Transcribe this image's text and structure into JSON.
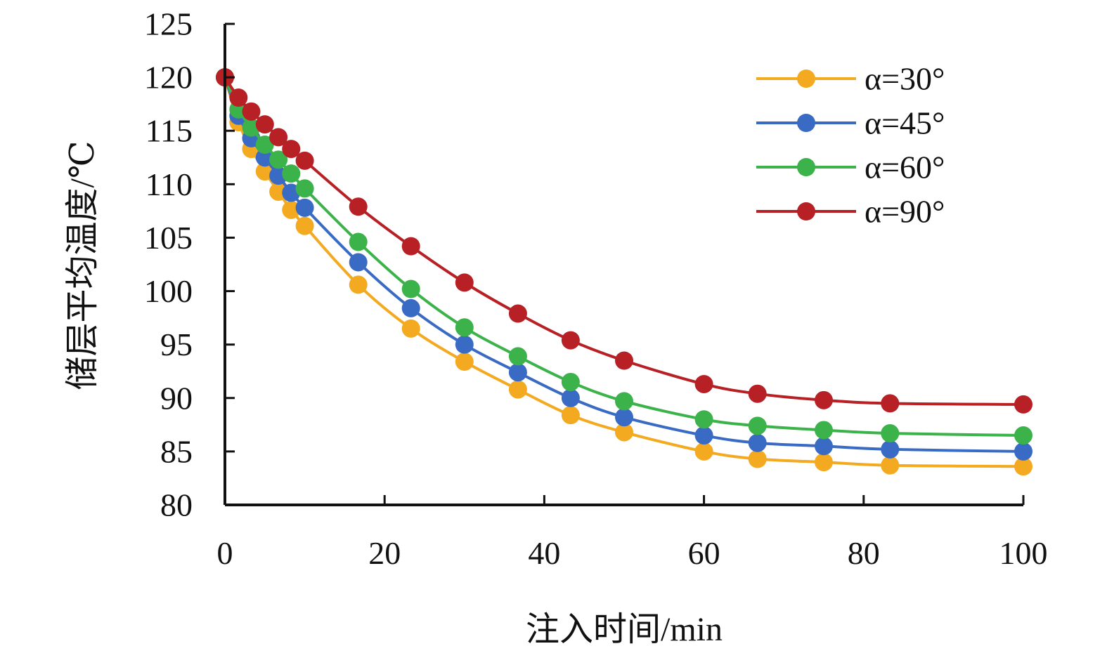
{
  "chart_data": {
    "type": "line",
    "xlabel": "注入时间/min",
    "ylabel": "储层平均温度/℃",
    "xlim": [
      0,
      100
    ],
    "ylim": [
      80,
      125
    ],
    "x_ticks": [
      "0",
      "20",
      "40",
      "60",
      "80",
      "100"
    ],
    "y_ticks": [
      "80",
      "85",
      "90",
      "95",
      "100",
      "105",
      "110",
      "115",
      "120",
      "125"
    ],
    "grid": false,
    "legend_position": "top-right",
    "x": [
      0,
      1.7,
      3.3,
      5,
      6.7,
      8.3,
      10,
      16.7,
      23.3,
      30,
      36.7,
      43.3,
      50,
      60,
      66.7,
      75,
      83.3,
      100
    ],
    "series": [
      {
        "name": "α=30°",
        "color": "#F3A920",
        "values": [
          120,
          115.8,
          113.3,
          111.2,
          109.3,
          107.6,
          106.1,
          100.6,
          96.5,
          93.4,
          90.8,
          88.4,
          86.8,
          85.0,
          84.3,
          84.0,
          83.7,
          83.6
        ]
      },
      {
        "name": "α=45°",
        "color": "#3A6BC4",
        "values": [
          120,
          116.4,
          114.3,
          112.5,
          110.8,
          109.2,
          107.8,
          102.7,
          98.4,
          95.0,
          92.4,
          90.0,
          88.2,
          86.5,
          85.8,
          85.5,
          85.2,
          85.0
        ]
      },
      {
        "name": "α=60°",
        "color": "#3CB34A",
        "values": [
          120,
          117.0,
          115.3,
          113.7,
          112.3,
          111.0,
          109.6,
          104.6,
          100.2,
          96.6,
          93.9,
          91.5,
          89.7,
          88.0,
          87.4,
          87.0,
          86.7,
          86.5
        ]
      },
      {
        "name": "α=90°",
        "color": "#B72025",
        "values": [
          120,
          118.1,
          116.8,
          115.6,
          114.4,
          113.3,
          112.2,
          107.9,
          104.2,
          100.8,
          97.9,
          95.4,
          93.5,
          91.3,
          90.4,
          89.8,
          89.5,
          89.4
        ]
      }
    ]
  }
}
